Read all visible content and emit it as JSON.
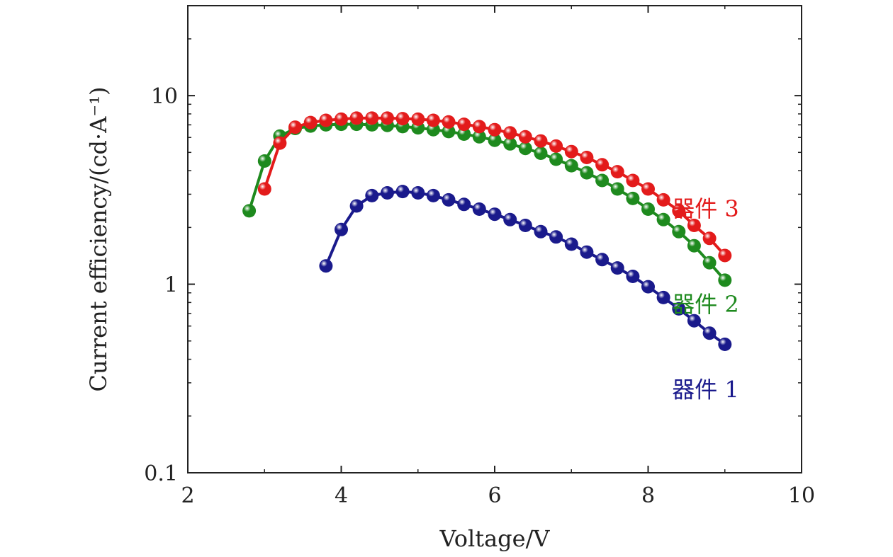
{
  "chart_data": {
    "type": "line",
    "title": "",
    "xlabel": "Voltage/V",
    "ylabel": "Current efficiency/(cd·A⁻¹)",
    "xlim": [
      2,
      10
    ],
    "ylim": [
      0.1,
      30
    ],
    "yscale": "log",
    "grid": false,
    "x_ticks": [
      {
        "value": 2,
        "label": "2"
      },
      {
        "value": 4,
        "label": "4"
      },
      {
        "value": 6,
        "label": "6"
      },
      {
        "value": 8,
        "label": "8"
      },
      {
        "value": 10,
        "label": "10"
      }
    ],
    "y_ticks": [
      {
        "value": 0.1,
        "label": "0.1"
      },
      {
        "value": 1,
        "label": "1"
      },
      {
        "value": 10,
        "label": "10"
      }
    ],
    "series": [
      {
        "name": "器件 1",
        "color": "#1a1a8c",
        "x": [
          3.8,
          4.0,
          4.2,
          4.4,
          4.6,
          4.8,
          5.0,
          5.2,
          5.4,
          5.6,
          5.8,
          6.0,
          6.2,
          6.4,
          6.6,
          6.8,
          7.0,
          7.2,
          7.4,
          7.6,
          7.8,
          8.0,
          8.2,
          8.4,
          8.6,
          8.8,
          9.0
        ],
        "y": [
          1.25,
          1.95,
          2.6,
          2.95,
          3.05,
          3.1,
          3.05,
          2.95,
          2.8,
          2.65,
          2.5,
          2.35,
          2.2,
          2.05,
          1.9,
          1.78,
          1.63,
          1.48,
          1.35,
          1.22,
          1.1,
          0.97,
          0.85,
          0.74,
          0.64,
          0.55,
          0.48
        ]
      },
      {
        "name": "器件 2",
        "color": "#1e8a1e",
        "x": [
          2.8,
          3.0,
          3.2,
          3.4,
          3.6,
          3.8,
          4.0,
          4.2,
          4.4,
          4.6,
          4.8,
          5.0,
          5.2,
          5.4,
          5.6,
          5.8,
          6.0,
          6.2,
          6.4,
          6.6,
          6.8,
          7.0,
          7.2,
          7.4,
          7.6,
          7.8,
          8.0,
          8.2,
          8.4,
          8.6,
          8.8,
          9.0
        ],
        "y": [
          2.45,
          4.5,
          6.1,
          6.7,
          6.9,
          7.0,
          7.05,
          7.05,
          7.0,
          6.95,
          6.85,
          6.75,
          6.6,
          6.45,
          6.25,
          6.05,
          5.8,
          5.55,
          5.25,
          4.95,
          4.6,
          4.25,
          3.9,
          3.55,
          3.2,
          2.85,
          2.5,
          2.2,
          1.9,
          1.6,
          1.3,
          1.05
        ]
      },
      {
        "name": "器件 3",
        "color": "#e31b1b",
        "x": [
          3.0,
          3.2,
          3.4,
          3.6,
          3.8,
          4.0,
          4.2,
          4.4,
          4.6,
          4.8,
          5.0,
          5.2,
          5.4,
          5.6,
          5.8,
          6.0,
          6.2,
          6.4,
          6.6,
          6.8,
          7.0,
          7.2,
          7.4,
          7.6,
          7.8,
          8.0,
          8.2,
          8.4,
          8.6,
          8.8,
          9.0
        ],
        "y": [
          3.2,
          5.6,
          6.8,
          7.2,
          7.4,
          7.5,
          7.6,
          7.6,
          7.6,
          7.55,
          7.5,
          7.4,
          7.25,
          7.05,
          6.85,
          6.6,
          6.35,
          6.05,
          5.75,
          5.4,
          5.05,
          4.7,
          4.3,
          3.95,
          3.55,
          3.2,
          2.8,
          2.45,
          2.05,
          1.75,
          1.42
        ]
      }
    ]
  }
}
